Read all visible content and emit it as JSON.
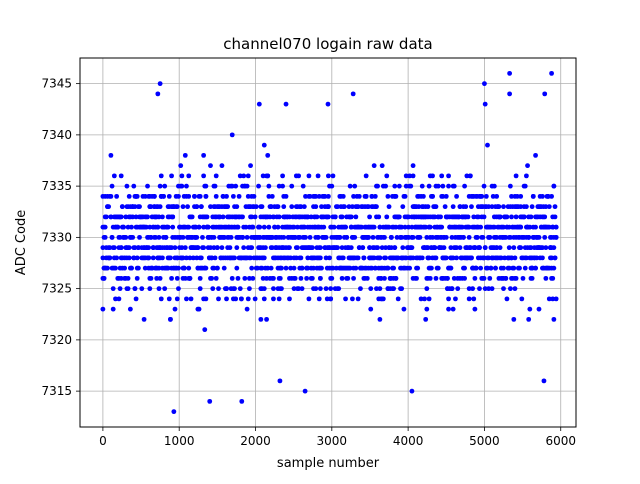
{
  "chart_data": {
    "type": "scatter",
    "title": "channel070 logain raw data",
    "xlabel": "sample number",
    "ylabel": "ADC Code",
    "xlim": [
      -300,
      6200
    ],
    "ylim": [
      7311.5,
      7347.5
    ],
    "x_ticks": [
      0,
      1000,
      2000,
      3000,
      4000,
      5000,
      6000
    ],
    "y_ticks": [
      7315,
      7320,
      7325,
      7330,
      7335,
      7340,
      7345
    ],
    "grid": true,
    "marker_color": "#0000ff",
    "series": [
      {
        "x_start": 0,
        "x_end": 5940,
        "x_step": 15,
        "dense_band": [
          7320,
          7341
        ],
        "typical_center": 7330,
        "outliers": [
          {
            "x": 750,
            "y": 7345
          },
          {
            "x": 930,
            "y": 7313
          },
          {
            "x": 1400,
            "y": 7314
          },
          {
            "x": 1820,
            "y": 7314
          },
          {
            "x": 3280,
            "y": 7344
          },
          {
            "x": 5000,
            "y": 7345
          },
          {
            "x": 5330,
            "y": 7346
          },
          {
            "x": 5880,
            "y": 7346
          },
          {
            "x": 2650,
            "y": 7315
          },
          {
            "x": 4050,
            "y": 7315
          },
          {
            "x": 2320,
            "y": 7316
          },
          {
            "x": 5780,
            "y": 7316
          },
          {
            "x": 720,
            "y": 7344
          },
          {
            "x": 5790,
            "y": 7344
          },
          {
            "x": 5330,
            "y": 7344
          },
          {
            "x": 2400,
            "y": 7343
          },
          {
            "x": 2950,
            "y": 7343
          },
          {
            "x": 2050,
            "y": 7343
          },
          {
            "x": 5010,
            "y": 7343
          }
        ]
      }
    ]
  }
}
